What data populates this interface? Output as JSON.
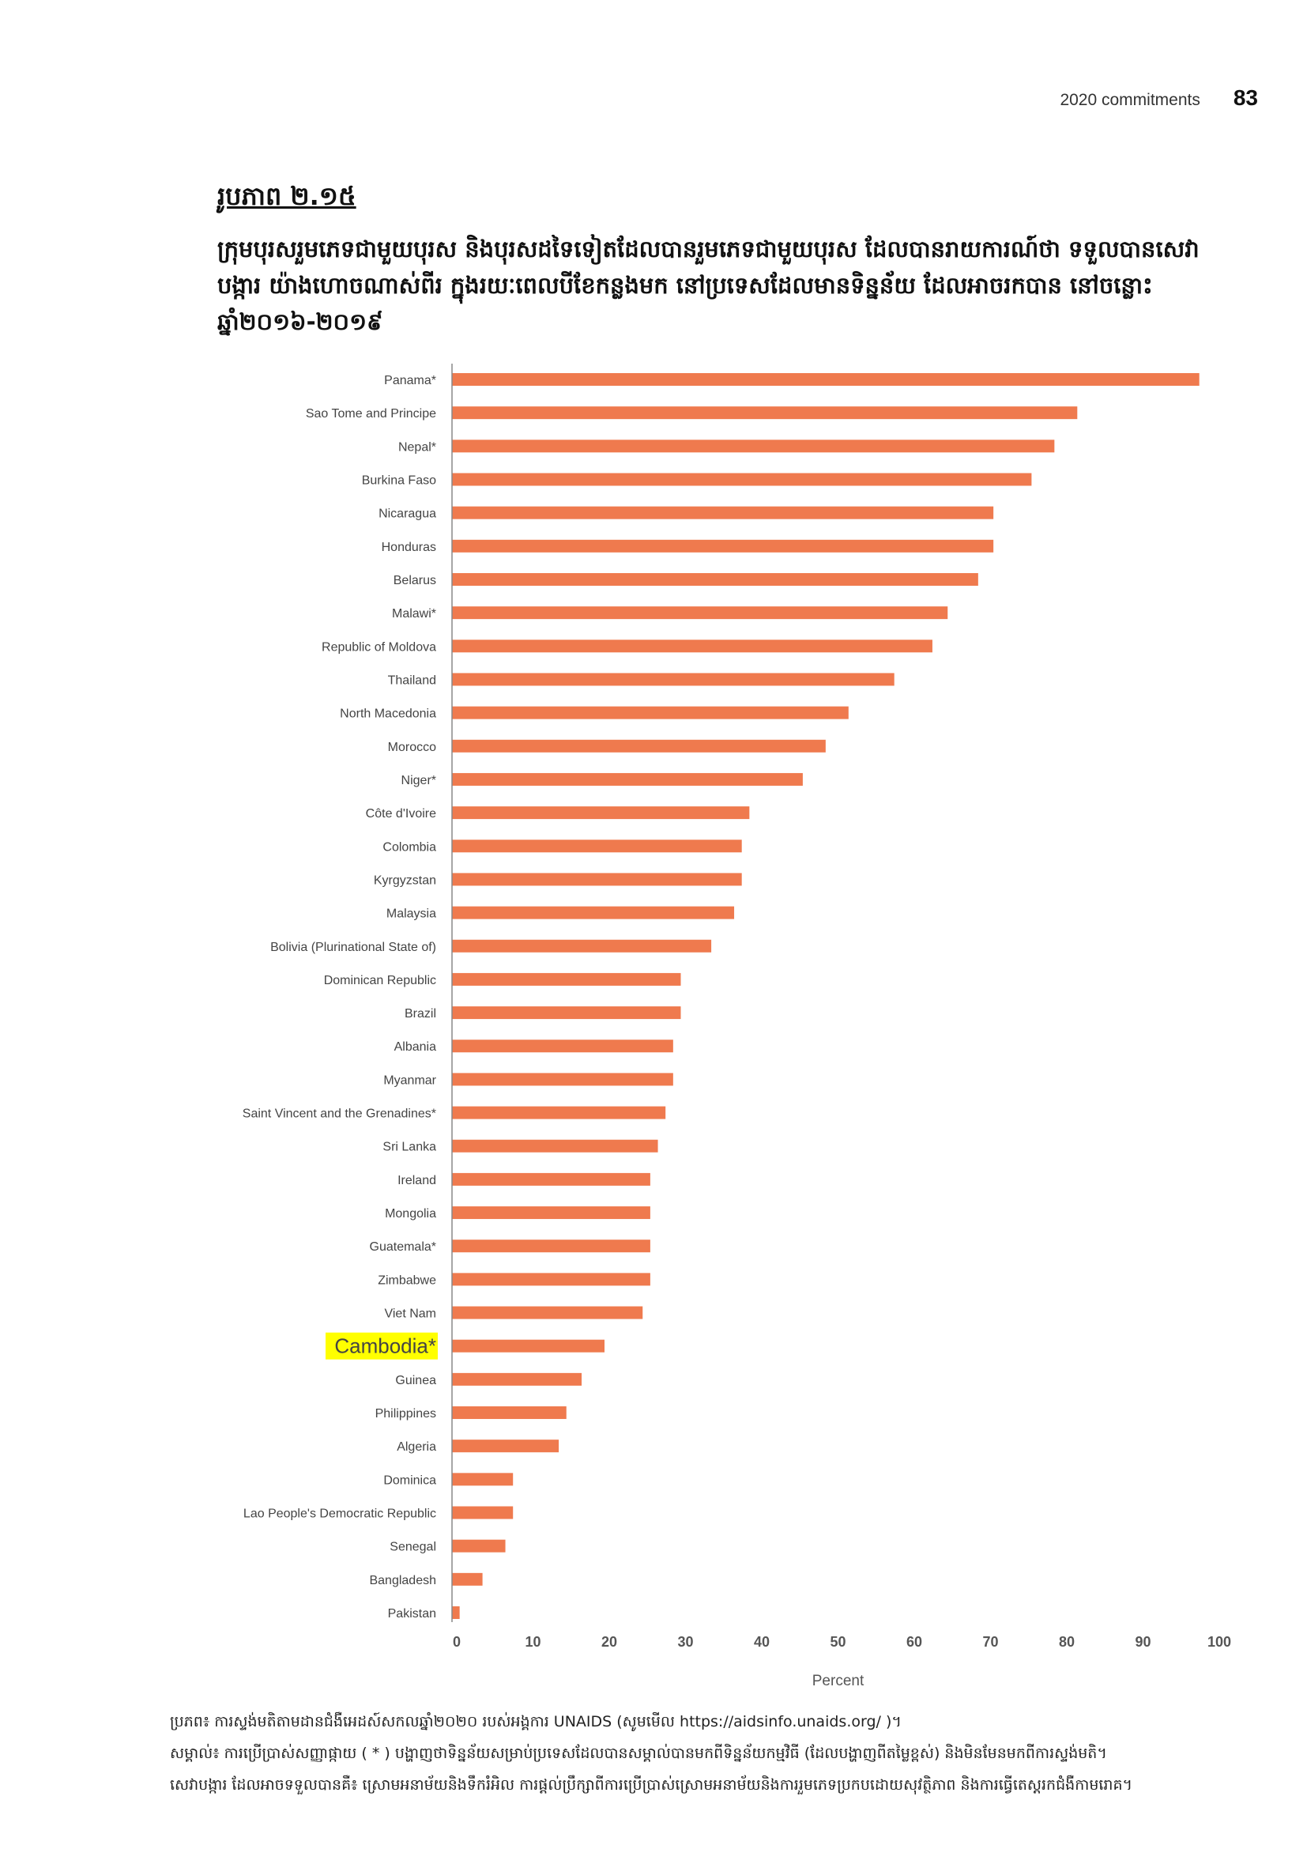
{
  "header": {
    "section": "2020 commitments",
    "page_number": "83"
  },
  "figure": {
    "label": "រូបភាព ២.១៥",
    "title": "ក្រុមបុរសរួមភេទជាមួយបុរស និងបុរសដទៃទៀតដែលបានរួមភេទជាមួយបុរស ដែលបានរាយការណ៍ថា ទទួលបានសេវាបង្ការ យ៉ាងហោចណាស់ពីរ ក្នុងរយៈពេលបីខែកន្លងមក នៅប្រទេសដែលមានទិន្នន័យ ដែលអាចរកបាន នៅចន្លោះឆ្នាំ២០១៦-២០១៩"
  },
  "chart_data": {
    "type": "bar",
    "orientation": "horizontal",
    "title": "ក្រុមបុរសរួមភេទជាមួយបុរស និងបុរសដទៃទៀតដែលបានរួមភេទជាមួយបុរស ដែលបានរាយការណ៍ថា ទទួលបានសេវាបង្ការ យ៉ាងហោចណាស់ពីរ ក្នុងរយៈពេលបីខែកន្លងមក នៅប្រទេសដែលមានទិន្នន័យ ដែលអាចរកបាន នៅចន្លោះឆ្នាំ២០១៦-២០១៩",
    "xlabel": "Percent",
    "ylabel": "",
    "xlim": [
      0,
      100
    ],
    "xticks": [
      "0",
      "10",
      "20",
      "30",
      "40",
      "50",
      "60",
      "70",
      "80",
      "90",
      "100"
    ],
    "grid": false,
    "bar_color": "#ef7a4e",
    "highlight_color": "#ffff00",
    "highlight_category": "Cambodia*",
    "categories": [
      "Panama*",
      "Sao Tome and Principe",
      "Nepal*",
      "Burkina Faso",
      "Nicaragua",
      "Honduras",
      "Belarus",
      "Malawi*",
      "Republic of Moldova",
      "Thailand",
      "North  Macedonia",
      "Morocco",
      "Niger*",
      "Côte d'Ivoire",
      "Colombia",
      "Kyrgyzstan",
      "Malaysia",
      "Bolivia (Plurinational State of)",
      "Dominican Republic",
      "Brazil",
      "Albania",
      "Myanmar",
      "Saint Vincent and the Grenadines*",
      "Sri Lanka",
      "Ireland",
      "Mongolia",
      "Guatemala*",
      "Zimbabwe",
      "Viet Nam",
      "Cambodia*",
      "Guinea",
      "Philippines",
      "Algeria",
      "Dominica",
      "Lao People's Democratic Republic",
      "Senegal",
      "Bangladesh",
      "Pakistan"
    ],
    "values": [
      98,
      82,
      79,
      76,
      71,
      71,
      69,
      65,
      63,
      58,
      52,
      49,
      46,
      39,
      38,
      38,
      37,
      34,
      30,
      30,
      29,
      29,
      28,
      27,
      26,
      26,
      26,
      26,
      25,
      20,
      17,
      15,
      14,
      8,
      8,
      7,
      4,
      1
    ]
  },
  "footer": {
    "source": "ប្រភព៖ ការស្ទង់មតិតាមដានជំងឺអេដស៍សកលឆ្នាំ២០២០ របស់អង្គការ UNAIDS (សូមមើល https://aidsinfo.unaids.org/ )។",
    "note": "សម្គាល់៖ ការប្រើប្រាស់សញ្ញាផ្កាយ ( * ) បង្ហាញថាទិន្នន័យសម្រាប់ប្រទេសដែលបានសម្គាល់បានមកពីទិន្នន័យកម្មវិធី (ដែលបង្ហាញពីតម្លៃខ្ពស់) និងមិនមែនមកពីការស្ទង់មតិ។",
    "services": "សេវាបង្ការ ដែលអាចទទួលបានគឺ៖ ស្រោមអនាម័យនិងទឹករំអិល ការផ្តល់ប្រឹក្សាពីការប្រើប្រាស់ស្រោមអនាម័យនិងការរួមភេទប្រកបដោយសុវត្ថិភាព និងការធ្វើតេស្តរកជំងឺកាមរោគ។"
  }
}
